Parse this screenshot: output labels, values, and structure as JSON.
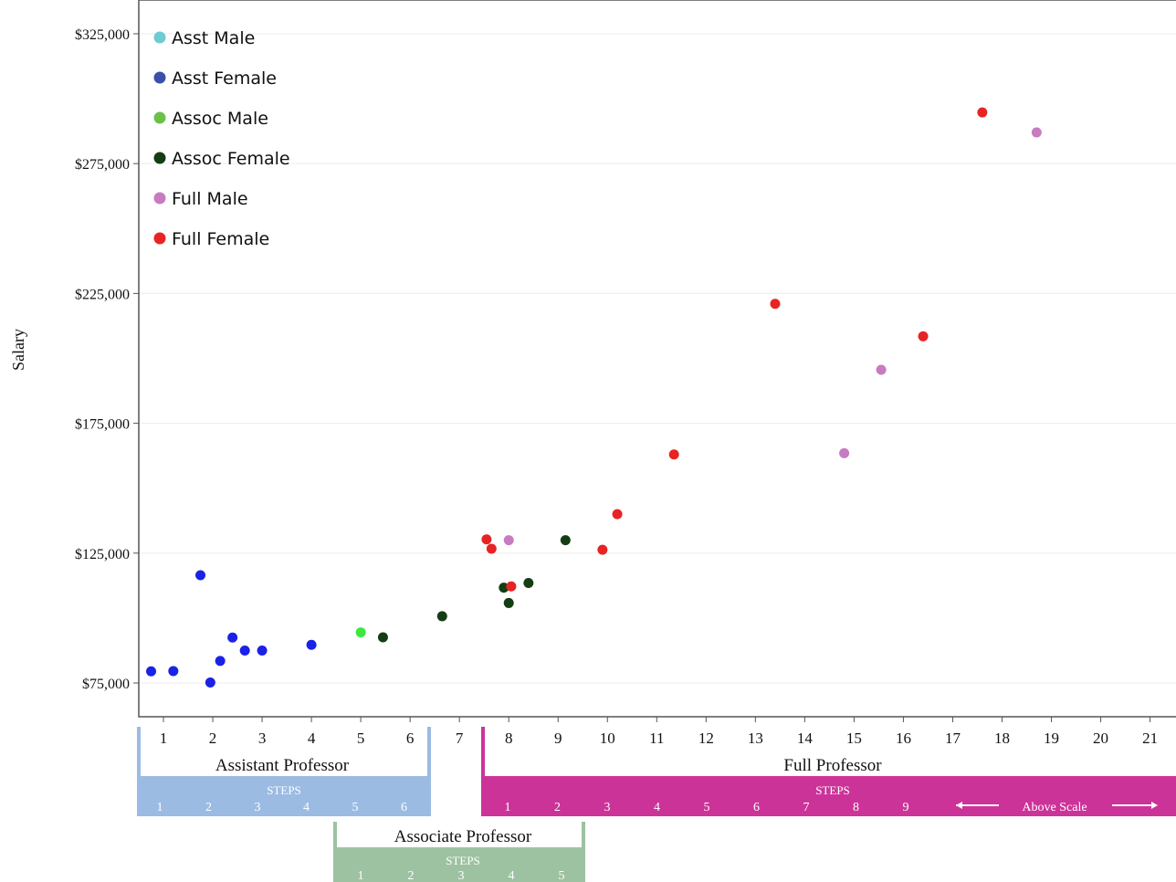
{
  "chart_data": {
    "type": "scatter",
    "title": "",
    "xlabel": "",
    "ylabel": "Salary",
    "xlim": [
      0.5,
      21.6
    ],
    "ylim": [
      62000,
      338000
    ],
    "x_ticks": [
      1,
      2,
      3,
      4,
      5,
      6,
      7,
      8,
      9,
      10,
      11,
      12,
      13,
      14,
      15,
      16,
      17,
      18,
      19,
      20,
      21
    ],
    "y_ticks": [
      75000,
      125000,
      175000,
      225000,
      275000,
      325000
    ],
    "y_tick_labels": [
      "$75,000",
      "$125,000",
      "$175,000",
      "$225,000",
      "$275,000",
      "$325,000"
    ],
    "grid": "horizontal",
    "legend_position": "top-left",
    "series": [
      {
        "name": "Asst Male",
        "color": "#6ecad3",
        "points": []
      },
      {
        "name": "Asst Female",
        "color": "#1a22e6",
        "legend_color": "#3b4fa8",
        "points": [
          [
            0.75,
            79500
          ],
          [
            1.2,
            79600
          ],
          [
            1.75,
            116500
          ],
          [
            1.95,
            75200
          ],
          [
            2.15,
            83500
          ],
          [
            2.4,
            92500
          ],
          [
            2.65,
            87500
          ],
          [
            3.0,
            87500
          ],
          [
            4.0,
            89700
          ]
        ]
      },
      {
        "name": "Assoc Male",
        "color": "#3ee83e",
        "legend_color": "#6cc04a",
        "points": [
          [
            5.0,
            94500
          ]
        ]
      },
      {
        "name": "Assoc Female",
        "color": "#143d14",
        "points": [
          [
            5.45,
            92600
          ],
          [
            6.65,
            100700
          ],
          [
            7.9,
            111700
          ],
          [
            8.0,
            105800
          ],
          [
            8.4,
            113500
          ],
          [
            9.15,
            130000
          ]
        ]
      },
      {
        "name": "Full Male",
        "color": "#c77bc0",
        "points": [
          [
            8.0,
            130000
          ],
          [
            14.8,
            163500
          ],
          [
            15.55,
            195600
          ],
          [
            18.7,
            287000
          ]
        ]
      },
      {
        "name": "Full Female",
        "color": "#e82323",
        "points": [
          [
            7.55,
            130300
          ],
          [
            7.65,
            126700
          ],
          [
            8.05,
            112200
          ],
          [
            9.9,
            126300
          ],
          [
            10.2,
            140000
          ],
          [
            11.35,
            163000
          ],
          [
            13.4,
            221000
          ],
          [
            16.4,
            208500
          ],
          [
            17.6,
            294700
          ]
        ]
      }
    ]
  },
  "rank_bands": {
    "assistant": {
      "title": "Assistant Professor",
      "steps_label": "STEPS",
      "steps": [
        "1",
        "2",
        "3",
        "4",
        "5",
        "6"
      ],
      "color": "#9bbbe3"
    },
    "associate": {
      "title": "Associate Professor",
      "steps_label": "STEPS",
      "steps": [
        "1",
        "2",
        "3",
        "4",
        "5"
      ],
      "color": "#9dc2a2"
    },
    "full": {
      "title": "Full Professor",
      "steps_label": "STEPS",
      "steps": [
        "1",
        "2",
        "3",
        "4",
        "5",
        "6",
        "7",
        "8",
        "9"
      ],
      "above_scale": "Above Scale",
      "color": "#cc3399"
    }
  }
}
